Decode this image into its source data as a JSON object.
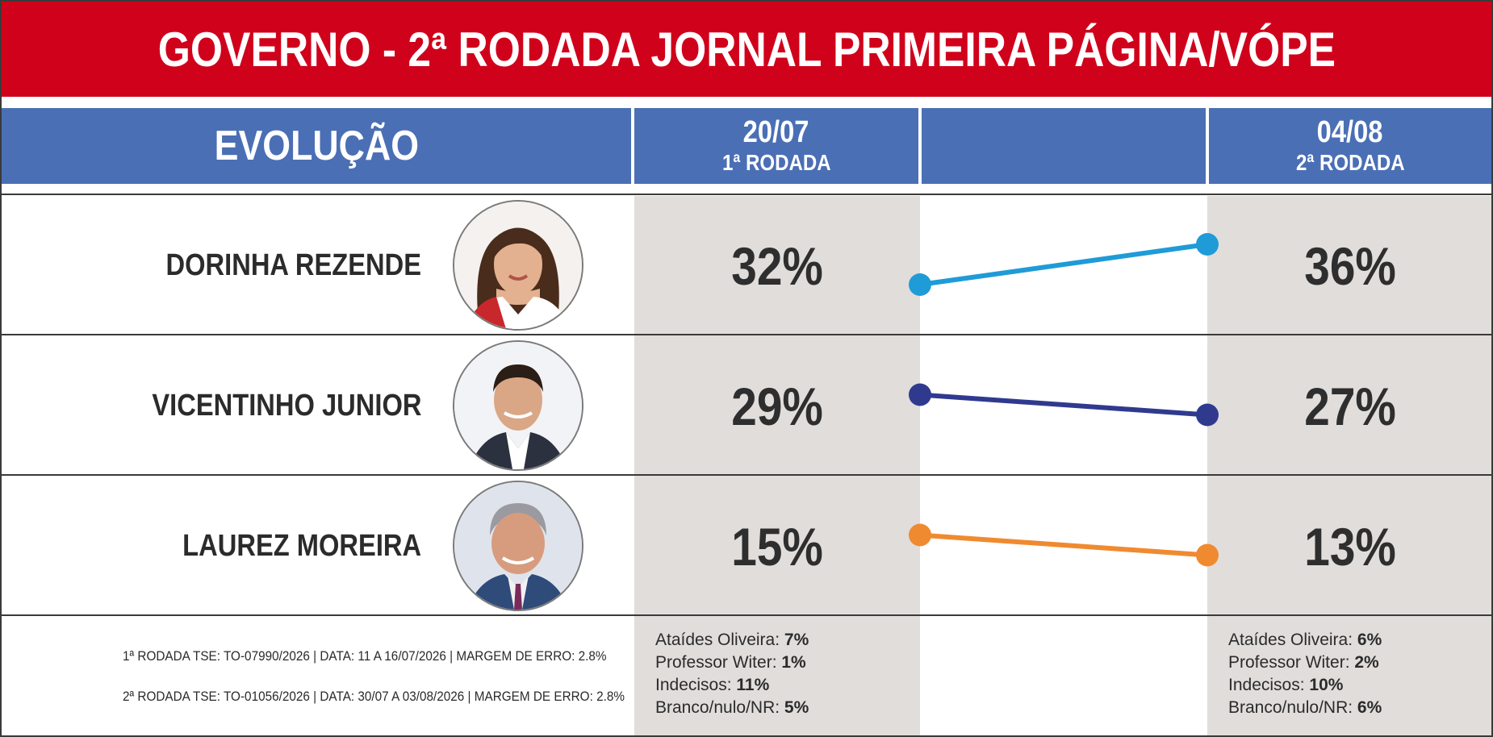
{
  "title": "GOVERNO - 2ª RODADA JORNAL PRIMEIRA PÁGINA/VÓPE",
  "header": {
    "label": "EVOLUÇÃO",
    "round1_date": "20/07",
    "round1_label": "1ª RODADA",
    "round2_date": "04/08",
    "round2_label": "2ª RODADA"
  },
  "chart_data": {
    "type": "line",
    "title": "GOVERNO - 2ª RODADA JORNAL PRIMEIRA PÁGINA/VÓPE",
    "categories": [
      "20/07",
      "04/08"
    ],
    "series": [
      {
        "name": "DORINHA REZENDE",
        "values": [
          32,
          36
        ],
        "labels": [
          "32%",
          "36%"
        ],
        "color": "#1f9bd7",
        "photo": "woman-portrait-icon"
      },
      {
        "name": "VICENTINHO JUNIOR",
        "values": [
          29,
          27
        ],
        "labels": [
          "29%",
          "27%"
        ],
        "color": "#2f3a8f",
        "photo": "man-portrait-icon"
      },
      {
        "name": "LAUREZ MOREIRA",
        "values": [
          15,
          13
        ],
        "labels": [
          "15%",
          "13%"
        ],
        "color": "#f08a30",
        "photo": "man-portrait-icon"
      }
    ]
  },
  "footer": {
    "method_round1": "1ª RODADA TSE: TO-07990/2026 | DATA: 11 A 16/07/2026 | MARGEM DE ERRO: 2.8%",
    "method_round2": "2ª RODADA TSE: TO-01056/2026 | DATA: 30/07 A 03/08/2026 | MARGEM DE ERRO: 2.8%",
    "others_round1": [
      {
        "label": "Ataídes Oliveira: ",
        "value": "7%"
      },
      {
        "label": "Professor Witer: ",
        "value": "1%"
      },
      {
        "label": "Indecisos: ",
        "value": "11%"
      },
      {
        "label": "Branco/nulo/NR: ",
        "value": "5%"
      }
    ],
    "others_round2": [
      {
        "label": "Ataídes Oliveira: ",
        "value": "6%"
      },
      {
        "label": "Professor Witer: ",
        "value": "2%"
      },
      {
        "label": "Indecisos: ",
        "value": "10%"
      },
      {
        "label": "Branco/nulo/NR: ",
        "value": "6%"
      }
    ]
  },
  "colors": {
    "title_bg": "#d0021b",
    "header_bg": "#4a6fb5",
    "shade_bg": "#e0dddb"
  }
}
